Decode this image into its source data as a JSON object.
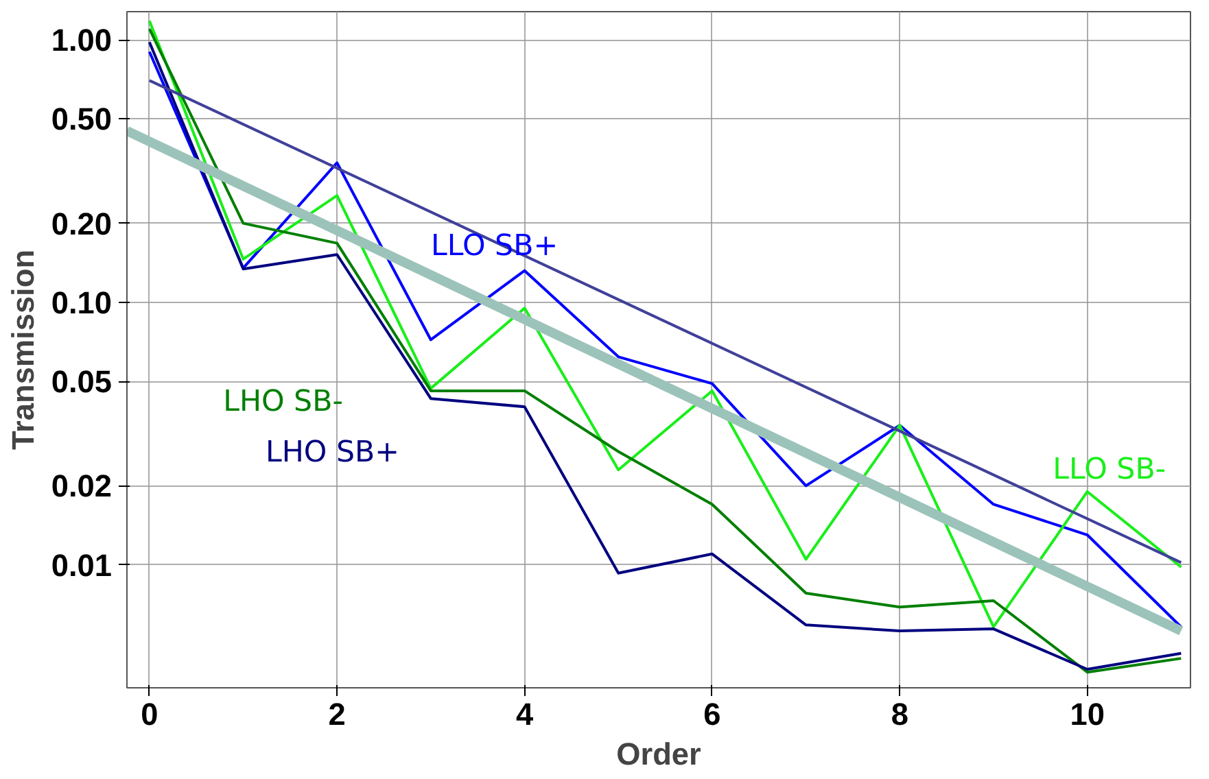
{
  "chart_data": {
    "type": "line",
    "xlabel": "Order",
    "ylabel": "Transmission",
    "log": "y",
    "grid": true,
    "x": [
      0,
      1,
      2,
      3,
      4,
      5,
      6,
      7,
      8,
      9,
      10,
      11
    ],
    "xlim": [
      -0.24,
      11.1
    ],
    "xticks": [
      0,
      2,
      4,
      6,
      8,
      10
    ],
    "ylim": [
      0.0034,
      1.28
    ],
    "yticks": [
      {
        "value": 0.01,
        "label": "0.01"
      },
      {
        "value": 0.02,
        "label": "0.02"
      },
      {
        "value": 0.05,
        "label": "0.05"
      },
      {
        "value": 0.1,
        "label": "0.10"
      },
      {
        "value": 0.2,
        "label": "0.20"
      },
      {
        "value": 0.5,
        "label": "0.50"
      },
      {
        "value": 1,
        "label": "1.00"
      }
    ],
    "series": [
      {
        "name": "LLO SB+",
        "color": "#0000ff",
        "values": [
          0.9,
          0.135,
          0.34,
          0.072,
          0.132,
          0.062,
          0.049,
          0.02,
          0.034,
          0.017,
          0.013,
          0.0058
        ]
      },
      {
        "name": "LLO SB-",
        "color": "#1aee1a",
        "values": [
          1.18,
          0.146,
          0.255,
          0.047,
          0.095,
          0.023,
          0.046,
          0.0105,
          0.034,
          0.0058,
          0.019,
          0.0098
        ]
      },
      {
        "name": "LHO SB-",
        "color": "#007f00",
        "values": [
          1.1,
          0.2,
          0.168,
          0.046,
          0.046,
          0.027,
          0.017,
          0.0078,
          0.0069,
          0.0073,
          0.0039,
          0.0044
        ]
      },
      {
        "name": "LHO SB+",
        "color": "#00007f",
        "values": [
          0.98,
          0.134,
          0.152,
          0.043,
          0.04,
          0.0093,
          0.011,
          0.0059,
          0.0056,
          0.0057,
          0.004,
          0.0046
        ]
      },
      {
        "color": "#40409a",
        "x": [
          0,
          11
        ],
        "values": [
          0.7,
          0.0102
        ]
      },
      {
        "color": "#9cc3b9",
        "x": [
          -0.24,
          11
        ],
        "values": [
          0.45,
          0.0056
        ]
      }
    ]
  }
}
